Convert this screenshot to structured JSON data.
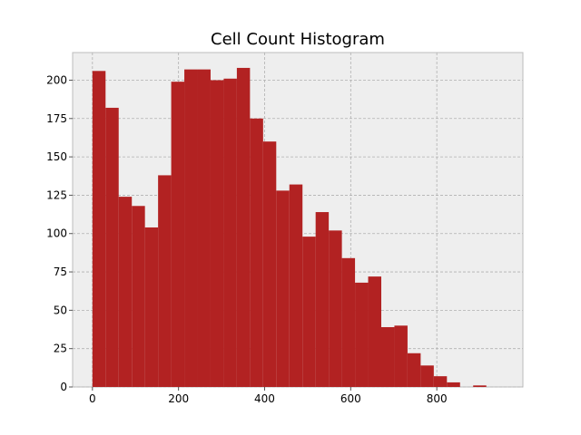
{
  "chart_data": {
    "type": "bar",
    "title": "Cell Count Histogram",
    "xlabel": "",
    "ylabel": "",
    "bin_edges": [
      0,
      30.5,
      61,
      91.5,
      122,
      152.5,
      183,
      213.5,
      244,
      274.5,
      305,
      335.5,
      366,
      396.5,
      427,
      457.5,
      488,
      518.5,
      549,
      579.5,
      610,
      640.5,
      671,
      701.5,
      732,
      762.5,
      793,
      823.5,
      854,
      884.5,
      915
    ],
    "values": [
      206,
      182,
      124,
      118,
      104,
      138,
      199,
      207,
      207,
      200,
      201,
      208,
      175,
      160,
      128,
      132,
      98,
      114,
      102,
      84,
      68,
      72,
      39,
      40,
      22,
      14,
      7,
      3,
      0,
      1
    ],
    "xlim": [
      -46,
      1000
    ],
    "ylim": [
      0,
      218
    ],
    "xticks": [
      0,
      200,
      400,
      600,
      800
    ],
    "yticks": [
      0,
      25,
      50,
      75,
      100,
      125,
      150,
      175,
      200
    ],
    "grid": true,
    "bar_color": "#b22222",
    "background_color": "#eeeeee"
  }
}
